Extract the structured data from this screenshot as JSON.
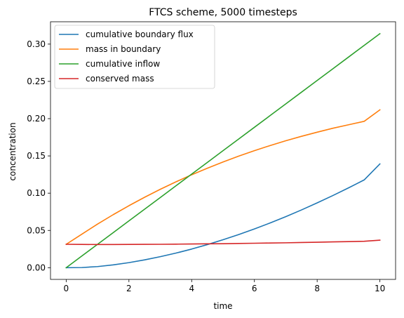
{
  "chart_data": {
    "type": "line",
    "title": "FTCS scheme, 5000 timesteps",
    "xlabel": "time",
    "ylabel": "concentration",
    "xlim": [
      -0.5,
      10.5
    ],
    "ylim": [
      -0.0157,
      0.33
    ],
    "xticks": [
      0,
      2,
      4,
      6,
      8,
      10
    ],
    "xtick_labels": [
      "0",
      "2",
      "4",
      "6",
      "8",
      "10"
    ],
    "yticks": [
      0.0,
      0.05,
      0.1,
      0.15,
      0.2,
      0.25,
      0.3
    ],
    "ytick_labels": [
      "0.00",
      "0.05",
      "0.10",
      "0.15",
      "0.20",
      "0.25",
      "0.30"
    ],
    "grid": false,
    "legend_position": "upper-left",
    "x": [
      0,
      0.5,
      1,
      1.5,
      2,
      2.5,
      3,
      3.5,
      4,
      4.5,
      5,
      5.5,
      6,
      6.5,
      7,
      7.5,
      8,
      8.5,
      9,
      9.5,
      10
    ],
    "series": [
      {
        "name": "cumulative boundary flux",
        "color": "#1f77b4",
        "values": [
          0.0,
          0.0002,
          0.0015,
          0.0038,
          0.0068,
          0.0105,
          0.0148,
          0.0196,
          0.025,
          0.031,
          0.0375,
          0.0445,
          0.052,
          0.06,
          0.0685,
          0.0775,
          0.087,
          0.0968,
          0.1071,
          0.1178,
          0.1392
        ]
      },
      {
        "name": "mass in boundary",
        "color": "#ff7f0e",
        "values": [
          0.0314,
          0.045,
          0.0585,
          0.0712,
          0.0832,
          0.0945,
          0.1052,
          0.1152,
          0.1247,
          0.1335,
          0.1418,
          0.1497,
          0.157,
          0.1639,
          0.1703,
          0.1763,
          0.1818,
          0.1871,
          0.1918,
          0.1964,
          0.2118
        ]
      },
      {
        "name": "cumulative inflow",
        "color": "#2ca02c",
        "values": [
          0.0,
          0.0157,
          0.0314,
          0.0471,
          0.0628,
          0.0785,
          0.0942,
          0.1099,
          0.1256,
          0.1413,
          0.157,
          0.1727,
          0.1884,
          0.2041,
          0.2198,
          0.2355,
          0.2512,
          0.2669,
          0.2826,
          0.2983,
          0.314
        ]
      },
      {
        "name": "conserved mass",
        "color": "#d62728",
        "values": [
          0.0314,
          0.0312,
          0.0311,
          0.0311,
          0.0312,
          0.0313,
          0.0314,
          0.0316,
          0.0318,
          0.032,
          0.0322,
          0.0325,
          0.0328,
          0.0331,
          0.0334,
          0.0338,
          0.0342,
          0.0346,
          0.035,
          0.0355,
          0.0369
        ]
      }
    ]
  }
}
